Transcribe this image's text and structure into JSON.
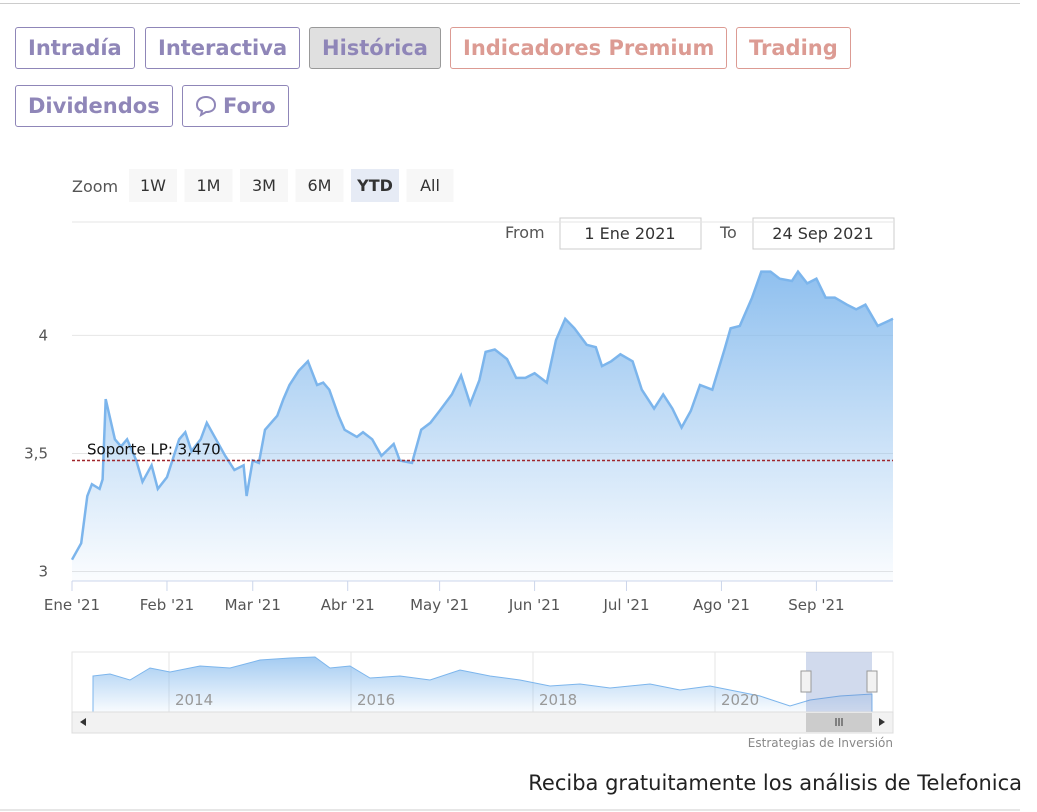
{
  "tabs": [
    "Intradía",
    "Interactiva",
    "Histórica",
    "Indicadores Premium",
    "Trading",
    "Dividendos",
    "Foro"
  ],
  "zoom": {
    "label": "Zoom",
    "buttons": [
      "1W",
      "1M",
      "3M",
      "6M",
      "YTD",
      "All"
    ]
  },
  "range": {
    "from_label": "From",
    "from": "1 Ene 2021",
    "to_label": "To",
    "to": "24 Sep 2021"
  },
  "chart_data": {
    "type": "area",
    "color": "#7cb5ec",
    "x": [
      0,
      3,
      5,
      6.5,
      9,
      10,
      11,
      14,
      16,
      18,
      21,
      23,
      26,
      28,
      31,
      35,
      37,
      39,
      42,
      44,
      47,
      50,
      53,
      56,
      57,
      59,
      61,
      63,
      67,
      69,
      71,
      74,
      77,
      80,
      82,
      84,
      87,
      89,
      93,
      95,
      98,
      101,
      105,
      107,
      111,
      114,
      117,
      120,
      124,
      127,
      130,
      133,
      135,
      138,
      142,
      145,
      148,
      151,
      155,
      158,
      161,
      164,
      168,
      171,
      173,
      176,
      179,
      183,
      186,
      190,
      193,
      196,
      199,
      202,
      205,
      209,
      213,
      215,
      218,
      222,
      225,
      228,
      231,
      235,
      237,
      240,
      243,
      246,
      249,
      253,
      256,
      259,
      263,
      268
    ],
    "values": [
      3.05,
      3.12,
      3.32,
      3.37,
      3.35,
      3.39,
      3.73,
      3.56,
      3.53,
      3.56,
      3.47,
      3.38,
      3.45,
      3.35,
      3.4,
      3.56,
      3.59,
      3.51,
      3.56,
      3.63,
      3.56,
      3.49,
      3.43,
      3.45,
      3.32,
      3.47,
      3.46,
      3.6,
      3.66,
      3.73,
      3.79,
      3.85,
      3.89,
      3.79,
      3.8,
      3.77,
      3.66,
      3.6,
      3.57,
      3.59,
      3.56,
      3.49,
      3.54,
      3.47,
      3.46,
      3.6,
      3.63,
      3.68,
      3.75,
      3.83,
      3.71,
      3.81,
      3.93,
      3.94,
      3.9,
      3.82,
      3.82,
      3.84,
      3.8,
      3.98,
      4.07,
      4.03,
      3.96,
      3.95,
      3.87,
      3.89,
      3.92,
      3.89,
      3.77,
      3.69,
      3.75,
      3.69,
      3.61,
      3.68,
      3.79,
      3.77,
      3.94,
      4.03,
      4.04,
      4.16,
      4.27,
      4.27,
      4.24,
      4.23,
      4.27,
      4.22,
      4.24,
      4.16,
      4.16,
      4.13,
      4.11,
      4.13,
      4.04,
      4.07
    ],
    "xlim": [
      0,
      268
    ],
    "xticks": [
      {
        "value": 0,
        "label": "Ene '21"
      },
      {
        "value": 31,
        "label": "Feb '21"
      },
      {
        "value": 59,
        "label": "Mar '21"
      },
      {
        "value": 90,
        "label": "Abr '21"
      },
      {
        "value": 120,
        "label": "May '21"
      },
      {
        "value": 151,
        "label": "Jun '21"
      },
      {
        "value": 181,
        "label": "Jul '21"
      },
      {
        "value": 212,
        "label": "Ago '21"
      },
      {
        "value": 243,
        "label": "Sep '21"
      }
    ],
    "ylim": [
      2.96,
      4.48
    ],
    "yticks": [
      3,
      {
        "value": 3.5,
        "label": "3,5"
      },
      4
    ],
    "grid": true,
    "plot_line": {
      "value": 3.47,
      "label": "Soporte LP: 3,470",
      "color": "#a0262b"
    }
  },
  "navigator": {
    "labels": [
      "2014",
      "2016",
      "2018",
      "2020"
    ]
  },
  "credits": "Estrategias de Inversión",
  "footer": "Reciba gratuitamente los análisis de Telefonica"
}
